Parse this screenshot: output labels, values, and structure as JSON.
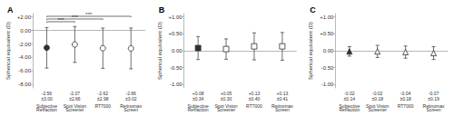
{
  "chart_data": [
    {
      "type": "scatter",
      "title": "A",
      "ylabel": "Spherical equivalent (D)",
      "categories": [
        "Subjective\nRefraction",
        "Spot Vision\nScreener",
        "RT7000",
        "Retinomax\nScreen"
      ],
      "values": [
        -2.56,
        -2.07,
        -2.62,
        -2.66
      ],
      "errors": [
        3.0,
        2.66,
        2.98,
        3.02
      ],
      "value_labels": [
        "-2.56\n±3.00",
        "-2.07\n±2.66",
        "-2.62\n±2.98",
        "-2.66\n±3.02"
      ],
      "marker": "circle",
      "color": "#303030",
      "colors": [
        "#303030",
        "#ffffff",
        "#ffffff",
        "#ffffff"
      ],
      "ylim": [
        -8.5,
        2.5
      ],
      "yticks": [
        {
          "value": 2.0,
          "label": "+2.00"
        },
        {
          "value": 0.0,
          "label": "0.00"
        },
        {
          "value": -2.0,
          "label": "-2.00"
        },
        {
          "value": -4.0,
          "label": "-4.00"
        },
        {
          "value": -6.0,
          "label": "-6.00"
        },
        {
          "value": -8.0,
          "label": "-8.00"
        }
      ],
      "grid": false,
      "annotations": [
        {
          "from": "Subjective\nRefraction",
          "to": "Spot Vision\nScreener",
          "y": 1.3,
          "text": "***"
        },
        {
          "from": "Subjective\nRefraction",
          "to": "RT7000",
          "y": 1.7,
          "text": "***"
        },
        {
          "from": "Subjective\nRefraction",
          "to": "Retinomax\nScreen",
          "y": 2.1,
          "text": "***"
        }
      ]
    },
    {
      "type": "scatter",
      "title": "B",
      "ylabel": "Spherical equivalent (D)",
      "categories": [
        "Subjective\nRefraction",
        "Spot Vision\nScreener",
        "RT7000",
        "Retinomax\nScreen"
      ],
      "values": [
        0.08,
        0.05,
        0.13,
        0.13
      ],
      "errors": [
        0.34,
        0.3,
        0.4,
        0.41
      ],
      "value_labels": [
        "+0.08\n±0.34",
        "+0.05\n±0.30",
        "+0.13\n±0.40",
        "+0.13\n±0.41"
      ],
      "marker": "square",
      "color": "#303030",
      "colors": [
        "#303030",
        "#ffffff",
        "#ffffff",
        "#ffffff"
      ],
      "ylim": [
        -1.1,
        1.1
      ],
      "yticks": [
        {
          "value": 1.0,
          "label": "+1.00"
        },
        {
          "value": 0.5,
          "label": "+0.50"
        },
        {
          "value": 0.0,
          "label": "0.00"
        },
        {
          "value": -0.5,
          "label": "-0.50"
        },
        {
          "value": -1.0,
          "label": "-1.00"
        }
      ],
      "grid": false,
      "annotations": []
    },
    {
      "type": "scatter",
      "title": "C",
      "ylabel": "Spherical equivalent (D)",
      "categories": [
        "Subjective\nRefraction",
        "Spot Vision\nScreener",
        "RT7000",
        "Retinomax\nScreen"
      ],
      "values": [
        -0.02,
        -0.02,
        -0.04,
        -0.07
      ],
      "errors": [
        0.14,
        0.18,
        0.18,
        0.19
      ],
      "value_labels": [
        "-0.02\n±0.14",
        "-0.02\n±0.18",
        "-0.04\n±0.18",
        "-0.07\n±0.19"
      ],
      "marker": "triangle",
      "color": "#303030",
      "colors": [
        "#303030",
        "#ffffff",
        "#ffffff",
        "#ffffff"
      ],
      "ylim": [
        -1.1,
        1.1
      ],
      "yticks": [
        {
          "value": 1.0,
          "label": "+1.00"
        },
        {
          "value": 0.5,
          "label": "+0.50"
        },
        {
          "value": 0.0,
          "label": "0.00"
        },
        {
          "value": -0.5,
          "label": "-0.50"
        },
        {
          "value": -1.0,
          "label": "-1.00"
        }
      ],
      "grid": false,
      "annotations": []
    }
  ]
}
